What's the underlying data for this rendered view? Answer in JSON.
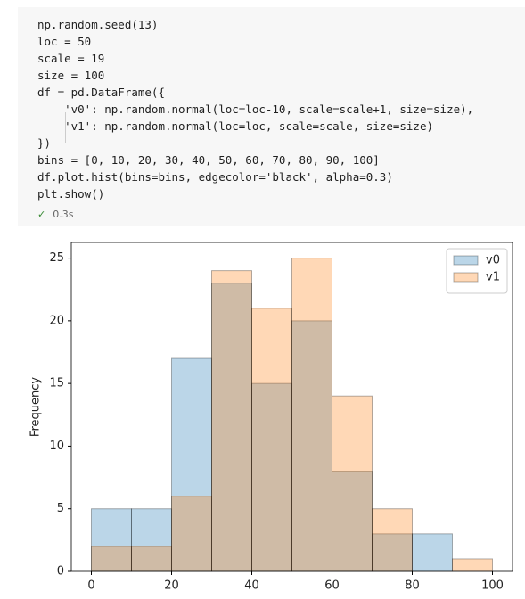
{
  "code": {
    "lines": [
      "np.random.seed(13)",
      "loc = 50",
      "scale = 19",
      "size = 100",
      "df = pd.DataFrame({",
      "    'v0': np.random.normal(loc=loc-10, scale=scale+1, size=size),",
      "    'v1': np.random.normal(loc=loc, scale=scale, size=size)",
      "})",
      "bins = [0, 10, 20, 30, 40, 50, 60, 70, 80, 90, 100]",
      "df.plot.hist(bins=bins, edgecolor='black', alpha=0.3)",
      "plt.show()"
    ],
    "status": "0.3s"
  },
  "chart_data": {
    "type": "histogram",
    "ylabel": "Frequency",
    "bins": [
      0,
      10,
      20,
      30,
      40,
      50,
      60,
      70,
      80,
      90,
      100
    ],
    "series": [
      {
        "name": "v0",
        "color": "#1f77b4",
        "values": [
          5,
          5,
          17,
          23,
          15,
          20,
          8,
          3,
          3,
          0
        ]
      },
      {
        "name": "v1",
        "color": "#ff7f0e",
        "values": [
          2,
          2,
          6,
          24,
          21,
          25,
          14,
          5,
          0,
          1
        ]
      }
    ],
    "alpha": 0.3,
    "edgecolor": "black",
    "xlim": [
      -5,
      105
    ],
    "xticks": [
      0,
      20,
      40,
      60,
      80,
      100
    ],
    "ylim": [
      0,
      26.25
    ],
    "yticks": [
      0,
      5,
      10,
      15,
      20,
      25
    ],
    "legend": "upper right"
  }
}
